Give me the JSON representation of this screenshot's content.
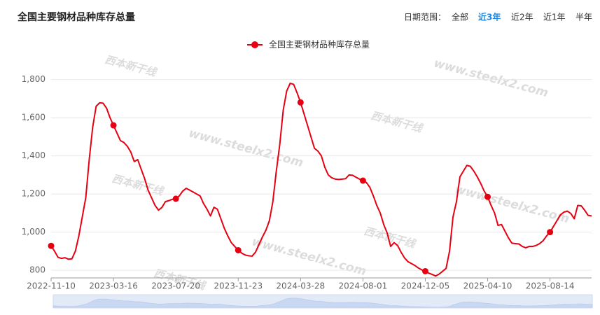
{
  "chart_data": {
    "type": "line",
    "title": "全国主要钢材品种库存总量",
    "categories": [
      "2022-11-10",
      null,
      null,
      null,
      null,
      null,
      null,
      null,
      null,
      null,
      null,
      null,
      null,
      null,
      null,
      null,
      null,
      null,
      "2023-03-16",
      null,
      null,
      null,
      null,
      null,
      null,
      null,
      null,
      null,
      null,
      null,
      null,
      null,
      null,
      null,
      null,
      null,
      "2023-07-20",
      null,
      null,
      null,
      null,
      null,
      null,
      null,
      null,
      null,
      null,
      null,
      null,
      null,
      null,
      null,
      null,
      null,
      "2023-11-23",
      null,
      null,
      null,
      null,
      null,
      null,
      null,
      null,
      null,
      null,
      null,
      null,
      null,
      null,
      null,
      null,
      null,
      "2024-03-28",
      null,
      null,
      null,
      null,
      null,
      null,
      null,
      null,
      null,
      null,
      null,
      null,
      null,
      null,
      null,
      null,
      null,
      "2024-08-01",
      null,
      null,
      null,
      null,
      null,
      null,
      null,
      null,
      null,
      null,
      null,
      null,
      null,
      null,
      null,
      null,
      null,
      "2024-12-05",
      null,
      null,
      null,
      null,
      null,
      null,
      null,
      null,
      null,
      null,
      null,
      null,
      null,
      null,
      null,
      null,
      null,
      "2025-04-10",
      null,
      null,
      null,
      null,
      null,
      null,
      null,
      null,
      null,
      null,
      null,
      null,
      null,
      null,
      null,
      null,
      null,
      "2025-08-14",
      null,
      null,
      null,
      null,
      null,
      null,
      null,
      null,
      null,
      null,
      null,
      null
    ],
    "series": [
      {
        "name": "全国主要钢材品种库存总量",
        "color": "#e60012",
        "values": [
          928,
          900,
          868,
          862,
          866,
          858,
          860,
          900,
          980,
          1080,
          1180,
          1380,
          1550,
          1660,
          1678,
          1676,
          1650,
          1600,
          1560,
          1520,
          1480,
          1470,
          1450,
          1420,
          1370,
          1380,
          1330,
          1280,
          1220,
          1180,
          1140,
          1115,
          1130,
          1160,
          1165,
          1172,
          1175,
          1190,
          1215,
          1230,
          1220,
          1210,
          1200,
          1190,
          1150,
          1120,
          1085,
          1130,
          1120,
          1070,
          1020,
          980,
          945,
          925,
          905,
          890,
          880,
          876,
          874,
          895,
          935,
          975,
          1010,
          1060,
          1160,
          1320,
          1460,
          1640,
          1740,
          1780,
          1775,
          1730,
          1680,
          1620,
          1560,
          1500,
          1440,
          1425,
          1400,
          1340,
          1300,
          1285,
          1278,
          1276,
          1278,
          1280,
          1300,
          1298,
          1288,
          1278,
          1270,
          1260,
          1235,
          1190,
          1140,
          1100,
          1040,
          995,
          925,
          945,
          930,
          895,
          865,
          845,
          835,
          825,
          812,
          802,
          795,
          785,
          778,
          770,
          780,
          795,
          810,
          900,
          1080,
          1160,
          1290,
          1320,
          1350,
          1345,
          1320,
          1290,
          1255,
          1215,
          1185,
          1140,
          1100,
          1035,
          1040,
          1005,
          970,
          942,
          940,
          938,
          925,
          918,
          925,
          925,
          930,
          940,
          955,
          980,
          1000,
          1030,
          1060,
          1090,
          1105,
          1110,
          1098,
          1070,
          1140,
          1138,
          1115,
          1088,
          1085
        ]
      }
    ],
    "ylim": [
      760,
      1850
    ],
    "yticks": [
      800,
      {
        "value": 1000,
        "label": "1,000"
      },
      {
        "value": 1200,
        "label": "1,200"
      },
      {
        "value": 1400,
        "label": "1,400"
      },
      {
        "value": 1600,
        "label": "1,600"
      },
      {
        "value": 1800,
        "label": "1,800"
      }
    ],
    "grid": true,
    "legend": "top"
  },
  "controls": {
    "label": "日期范围：",
    "options": [
      "全部",
      "近3年",
      "近2年",
      "近1年",
      "半年"
    ],
    "active": 1
  },
  "watermark": {
    "logo": "西本新干线",
    "url": "www.steelx2.com"
  }
}
